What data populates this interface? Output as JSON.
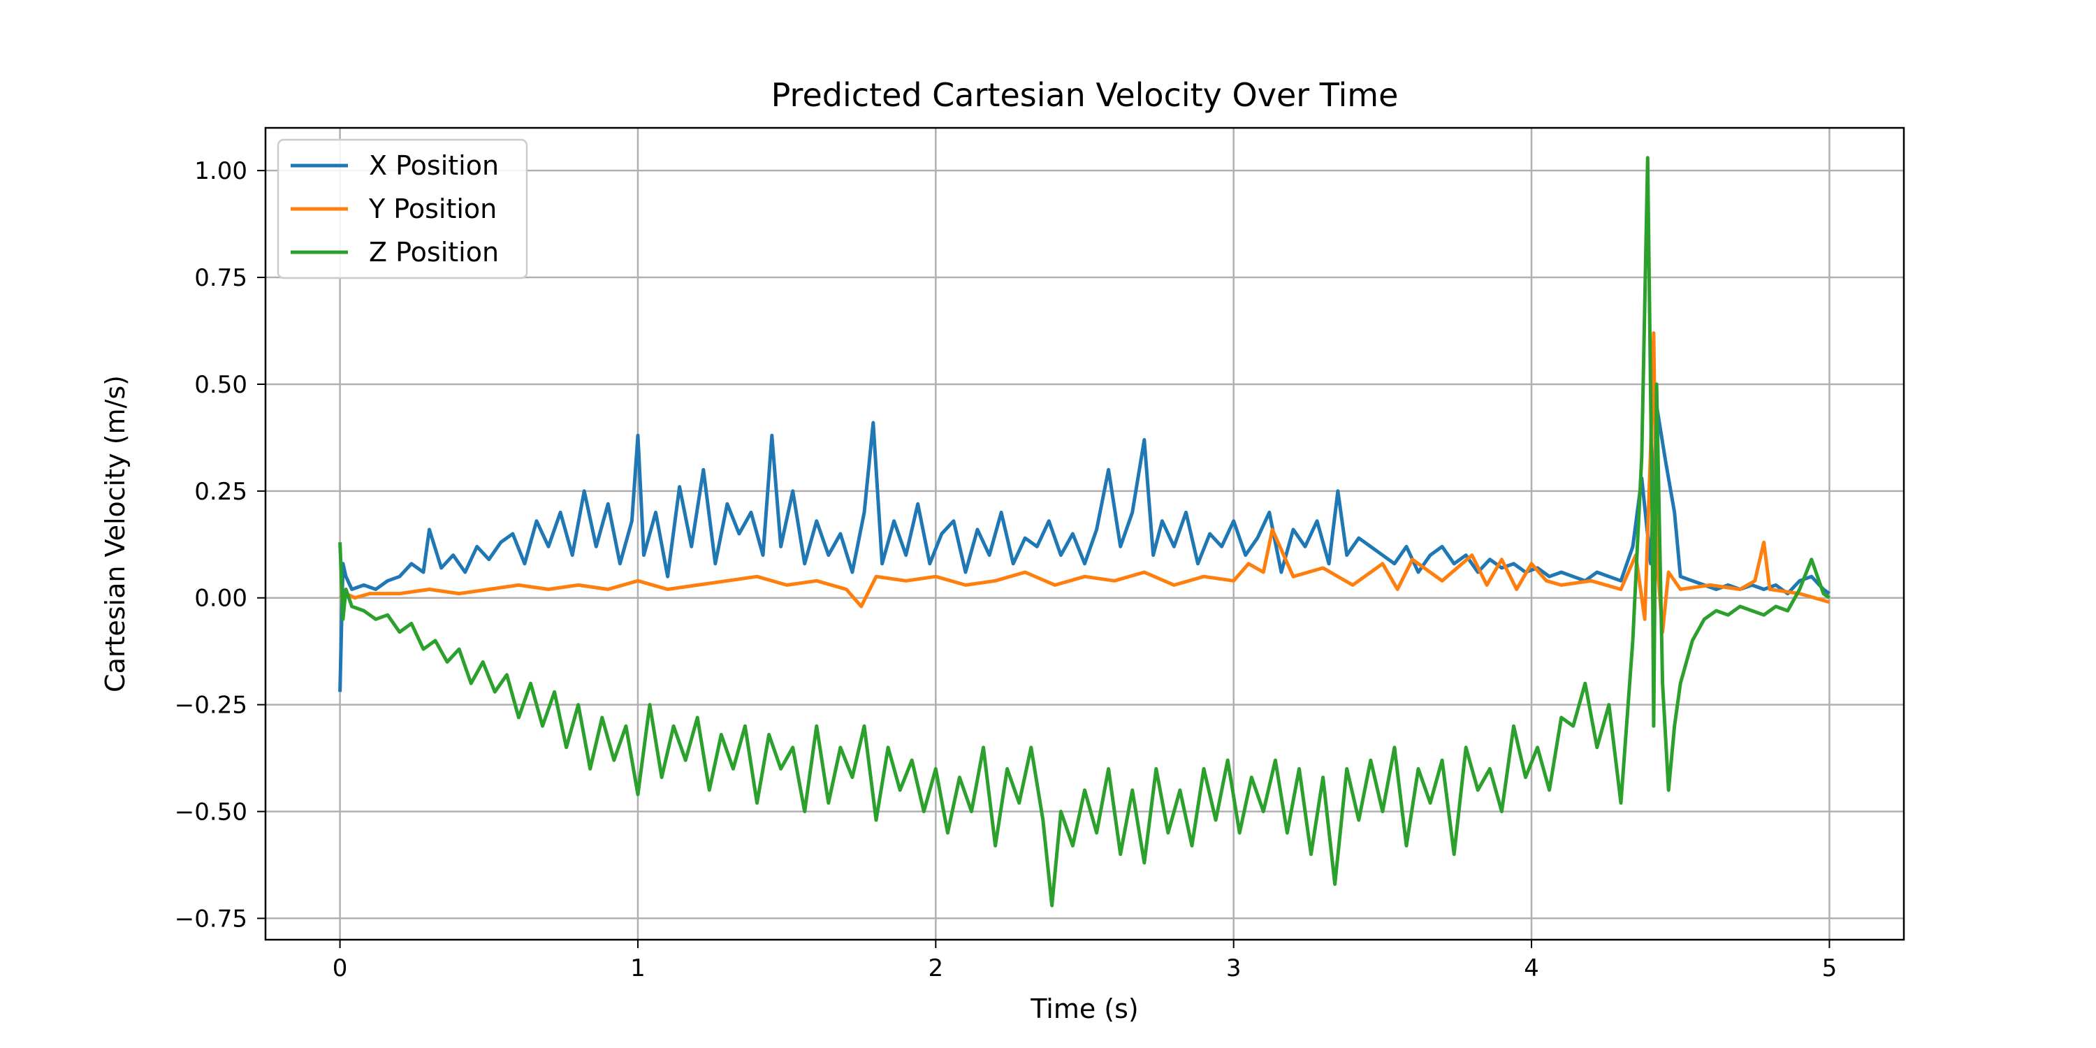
{
  "chart_data": {
    "type": "line",
    "title": "Predicted Cartesian Velocity Over Time",
    "xlabel": "Time (s)",
    "ylabel": "Cartesian Velocity (m/s)",
    "xlim": [
      -0.25,
      5.25
    ],
    "ylim": [
      -0.8,
      1.1
    ],
    "xticks": [
      0,
      1,
      2,
      3,
      4,
      5
    ],
    "xtick_labels": [
      "0",
      "1",
      "2",
      "3",
      "4",
      "5"
    ],
    "yticks": [
      -0.75,
      -0.5,
      -0.25,
      0.0,
      0.25,
      0.5,
      0.75,
      1.0
    ],
    "ytick_labels": [
      "−0.75",
      "−0.50",
      "−0.25",
      "0.00",
      "0.25",
      "0.50",
      "0.75",
      "1.00"
    ],
    "grid": true,
    "legend_position": "top-left",
    "series": [
      {
        "name": "X Position",
        "color": "#1f77b4",
        "x": [
          0,
          0.01,
          0.02,
          0.04,
          0.08,
          0.12,
          0.16,
          0.2,
          0.24,
          0.28,
          0.3,
          0.34,
          0.38,
          0.42,
          0.46,
          0.5,
          0.54,
          0.58,
          0.62,
          0.66,
          0.7,
          0.74,
          0.78,
          0.82,
          0.86,
          0.9,
          0.94,
          0.98,
          1.0,
          1.02,
          1.06,
          1.1,
          1.14,
          1.18,
          1.22,
          1.26,
          1.3,
          1.34,
          1.38,
          1.42,
          1.45,
          1.48,
          1.52,
          1.56,
          1.6,
          1.64,
          1.68,
          1.72,
          1.76,
          1.79,
          1.82,
          1.86,
          1.9,
          1.94,
          1.98,
          2.02,
          2.06,
          2.1,
          2.14,
          2.18,
          2.22,
          2.26,
          2.3,
          2.34,
          2.38,
          2.42,
          2.46,
          2.5,
          2.54,
          2.58,
          2.62,
          2.66,
          2.7,
          2.73,
          2.76,
          2.8,
          2.84,
          2.88,
          2.92,
          2.96,
          3.0,
          3.04,
          3.08,
          3.12,
          3.16,
          3.2,
          3.24,
          3.28,
          3.32,
          3.35,
          3.38,
          3.42,
          3.46,
          3.5,
          3.54,
          3.58,
          3.62,
          3.66,
          3.7,
          3.74,
          3.78,
          3.82,
          3.86,
          3.9,
          3.94,
          3.98,
          4.02,
          4.06,
          4.1,
          4.14,
          4.18,
          4.22,
          4.26,
          4.3,
          4.34,
          4.37,
          4.4,
          4.42,
          4.45,
          4.48,
          4.5,
          4.54,
          4.58,
          4.62,
          4.66,
          4.7,
          4.74,
          4.78,
          4.82,
          4.86,
          4.9,
          4.94,
          4.98,
          5.0
        ],
        "y": [
          -0.22,
          0.08,
          0.05,
          0.02,
          0.03,
          0.02,
          0.04,
          0.05,
          0.08,
          0.06,
          0.16,
          0.07,
          0.1,
          0.06,
          0.12,
          0.09,
          0.13,
          0.15,
          0.08,
          0.18,
          0.12,
          0.2,
          0.1,
          0.25,
          0.12,
          0.22,
          0.08,
          0.18,
          0.38,
          0.1,
          0.2,
          0.05,
          0.26,
          0.12,
          0.3,
          0.08,
          0.22,
          0.15,
          0.2,
          0.1,
          0.38,
          0.12,
          0.25,
          0.08,
          0.18,
          0.1,
          0.15,
          0.06,
          0.2,
          0.41,
          0.08,
          0.18,
          0.1,
          0.22,
          0.08,
          0.15,
          0.18,
          0.06,
          0.16,
          0.1,
          0.2,
          0.08,
          0.14,
          0.12,
          0.18,
          0.1,
          0.15,
          0.08,
          0.16,
          0.3,
          0.12,
          0.2,
          0.37,
          0.1,
          0.18,
          0.12,
          0.2,
          0.08,
          0.15,
          0.12,
          0.18,
          0.1,
          0.14,
          0.2,
          0.06,
          0.16,
          0.12,
          0.18,
          0.08,
          0.25,
          0.1,
          0.14,
          0.12,
          0.1,
          0.08,
          0.12,
          0.06,
          0.1,
          0.12,
          0.08,
          0.1,
          0.06,
          0.09,
          0.07,
          0.08,
          0.06,
          0.07,
          0.05,
          0.06,
          0.05,
          0.04,
          0.06,
          0.05,
          0.04,
          0.12,
          0.28,
          0.08,
          0.45,
          0.32,
          0.2,
          0.05,
          0.04,
          0.03,
          0.02,
          0.03,
          0.02,
          0.03,
          0.02,
          0.03,
          0.01,
          0.04,
          0.05,
          0.02,
          0.01
        ]
      },
      {
        "name": "Y Position",
        "color": "#ff7f0e",
        "x": [
          0,
          0.02,
          0.05,
          0.1,
          0.2,
          0.3,
          0.4,
          0.5,
          0.6,
          0.7,
          0.8,
          0.9,
          1.0,
          1.1,
          1.2,
          1.3,
          1.4,
          1.5,
          1.6,
          1.7,
          1.75,
          1.8,
          1.9,
          2.0,
          2.1,
          2.2,
          2.3,
          2.4,
          2.5,
          2.6,
          2.7,
          2.8,
          2.9,
          3.0,
          3.05,
          3.1,
          3.13,
          3.2,
          3.3,
          3.4,
          3.5,
          3.55,
          3.6,
          3.7,
          3.8,
          3.85,
          3.9,
          3.95,
          4.0,
          4.05,
          4.1,
          4.2,
          4.3,
          4.35,
          4.38,
          4.4,
          4.41,
          4.42,
          4.44,
          4.46,
          4.5,
          4.6,
          4.7,
          4.75,
          4.78,
          4.8,
          4.9,
          5.0
        ],
        "y": [
          0.0,
          0.01,
          0.0,
          0.01,
          0.01,
          0.02,
          0.01,
          0.02,
          0.03,
          0.02,
          0.03,
          0.02,
          0.04,
          0.02,
          0.03,
          0.04,
          0.05,
          0.03,
          0.04,
          0.02,
          -0.02,
          0.05,
          0.04,
          0.05,
          0.03,
          0.04,
          0.06,
          0.03,
          0.05,
          0.04,
          0.06,
          0.03,
          0.05,
          0.04,
          0.08,
          0.06,
          0.16,
          0.05,
          0.07,
          0.03,
          0.08,
          0.02,
          0.09,
          0.04,
          0.1,
          0.03,
          0.09,
          0.02,
          0.08,
          0.04,
          0.03,
          0.04,
          0.02,
          0.1,
          -0.05,
          0.35,
          0.62,
          0.1,
          -0.08,
          0.06,
          0.02,
          0.03,
          0.02,
          0.04,
          0.13,
          0.02,
          0.01,
          -0.01
        ]
      },
      {
        "name": "Z Position",
        "color": "#2ca02c",
        "x": [
          0,
          0.01,
          0.02,
          0.04,
          0.08,
          0.12,
          0.16,
          0.2,
          0.24,
          0.28,
          0.32,
          0.36,
          0.4,
          0.44,
          0.48,
          0.52,
          0.56,
          0.6,
          0.64,
          0.68,
          0.72,
          0.76,
          0.8,
          0.84,
          0.88,
          0.92,
          0.96,
          1.0,
          1.04,
          1.08,
          1.12,
          1.16,
          1.2,
          1.24,
          1.28,
          1.32,
          1.36,
          1.4,
          1.44,
          1.48,
          1.52,
          1.56,
          1.6,
          1.64,
          1.68,
          1.72,
          1.76,
          1.8,
          1.84,
          1.88,
          1.92,
          1.96,
          2.0,
          2.04,
          2.08,
          2.12,
          2.16,
          2.2,
          2.24,
          2.28,
          2.32,
          2.36,
          2.39,
          2.42,
          2.46,
          2.5,
          2.54,
          2.58,
          2.62,
          2.66,
          2.7,
          2.74,
          2.78,
          2.82,
          2.86,
          2.9,
          2.94,
          2.98,
          3.02,
          3.06,
          3.1,
          3.14,
          3.18,
          3.22,
          3.26,
          3.3,
          3.34,
          3.38,
          3.42,
          3.46,
          3.5,
          3.54,
          3.58,
          3.62,
          3.66,
          3.7,
          3.74,
          3.78,
          3.82,
          3.86,
          3.9,
          3.94,
          3.98,
          4.02,
          4.06,
          4.1,
          4.14,
          4.18,
          4.22,
          4.26,
          4.3,
          4.34,
          4.37,
          4.39,
          4.405,
          4.41,
          4.42,
          4.44,
          4.46,
          4.48,
          4.5,
          4.54,
          4.58,
          4.62,
          4.66,
          4.7,
          4.74,
          4.78,
          4.82,
          4.86,
          4.9,
          4.94,
          4.98,
          5.0
        ],
        "y": [
          0.13,
          -0.05,
          0.02,
          -0.02,
          -0.03,
          -0.05,
          -0.04,
          -0.08,
          -0.06,
          -0.12,
          -0.1,
          -0.15,
          -0.12,
          -0.2,
          -0.15,
          -0.22,
          -0.18,
          -0.28,
          -0.2,
          -0.3,
          -0.22,
          -0.35,
          -0.25,
          -0.4,
          -0.28,
          -0.38,
          -0.3,
          -0.46,
          -0.25,
          -0.42,
          -0.3,
          -0.38,
          -0.28,
          -0.45,
          -0.32,
          -0.4,
          -0.3,
          -0.48,
          -0.32,
          -0.4,
          -0.35,
          -0.5,
          -0.3,
          -0.48,
          -0.35,
          -0.42,
          -0.3,
          -0.52,
          -0.35,
          -0.45,
          -0.38,
          -0.5,
          -0.4,
          -0.55,
          -0.42,
          -0.5,
          -0.35,
          -0.58,
          -0.4,
          -0.48,
          -0.35,
          -0.52,
          -0.72,
          -0.5,
          -0.58,
          -0.45,
          -0.55,
          -0.4,
          -0.6,
          -0.45,
          -0.62,
          -0.4,
          -0.55,
          -0.45,
          -0.58,
          -0.4,
          -0.52,
          -0.38,
          -0.55,
          -0.42,
          -0.5,
          -0.38,
          -0.55,
          -0.4,
          -0.6,
          -0.42,
          -0.67,
          -0.4,
          -0.52,
          -0.38,
          -0.5,
          -0.35,
          -0.58,
          -0.4,
          -0.48,
          -0.38,
          -0.6,
          -0.35,
          -0.45,
          -0.4,
          -0.5,
          -0.3,
          -0.42,
          -0.35,
          -0.45,
          -0.28,
          -0.3,
          -0.2,
          -0.35,
          -0.25,
          -0.48,
          -0.1,
          0.33,
          1.03,
          0.2,
          -0.3,
          0.5,
          -0.2,
          -0.45,
          -0.3,
          -0.2,
          -0.1,
          -0.05,
          -0.03,
          -0.04,
          -0.02,
          -0.03,
          -0.04,
          -0.02,
          -0.03,
          0.02,
          0.09,
          0.01,
          0.0
        ]
      }
    ]
  }
}
